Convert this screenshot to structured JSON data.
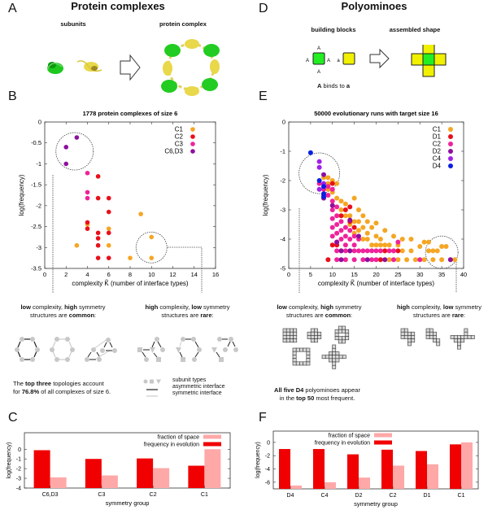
{
  "panels": {
    "A": {
      "letter": "A",
      "title": "Protein complexes",
      "left_label": "subunits",
      "right_label": "protein complex"
    },
    "D": {
      "letter": "D",
      "title": "Polyominoes",
      "left_label": "building blocks",
      "right_label": "assembled shape",
      "block_label_A": "A",
      "block_label_a": "a",
      "binding_note_bold1": "A",
      "binding_note_mid": " binds to ",
      "binding_note_bold2": "a"
    },
    "B": {
      "letter": "B"
    },
    "E": {
      "letter": "E"
    },
    "C": {
      "letter": "C"
    },
    "F": {
      "letter": "F"
    }
  },
  "captions_B": {
    "left_line1_bold1": "low",
    "left_line1_mid": " complexity, ",
    "left_line1_bold2": "high",
    "left_line1_end": " symmetry",
    "left_line2_start": "structures are ",
    "left_line2_bold": "common",
    "left_line2_end": ":",
    "right_line1_bold1": "high",
    "right_line1_mid": " complexity, ",
    "right_line1_bold2": "low",
    "right_line1_end": " symmetry",
    "right_line2_start": "structures are ",
    "right_line2_bold": "rare",
    "right_line2_end": ":",
    "note_line1_start": "The ",
    "note_line1_bold": "top three",
    "note_line1_end": " topologies account",
    "note_line2_start": "for ",
    "note_line2_bold": "76.8%",
    "note_line2_end": " of all complexes of size 6.",
    "legend_subunit": "subunit types",
    "legend_asym": "asymmetric interface",
    "legend_sym": "symmetric interface"
  },
  "captions_E": {
    "left_line1_bold1": "low",
    "left_line1_mid": " complexity, ",
    "left_line1_bold2": "high",
    "left_line1_end": " symmetry",
    "left_line2_start": "structures are ",
    "left_line2_bold": "common",
    "left_line2_end": ":",
    "right_line1_bold1": "high",
    "right_line1_mid": " complexity, ",
    "right_line1_bold2": "low",
    "right_line1_end": " symmetry",
    "right_line2_start": "structures are ",
    "right_line2_bold": "rare",
    "right_line2_end": ":",
    "note_line1_bold": "All five D4",
    "note_line1_end": " polyominoes appear",
    "note_line2_start": "in the ",
    "note_line2_bold": "top 50",
    "note_line2_end": " most frequent."
  },
  "chart_data": [
    {
      "id": "B",
      "type": "scatter",
      "title": "1778 protein complexes of size 6",
      "xlabel": "complexity K̃ (number of interface types)",
      "ylabel": "log(frequency)",
      "xlim": [
        0,
        16
      ],
      "ylim": [
        -3.5,
        0
      ],
      "xticks": [
        0,
        2,
        4,
        6,
        8,
        10,
        12,
        14,
        16
      ],
      "yticks": [
        0,
        -0.5,
        -1,
        -1.5,
        -2,
        -2.5,
        -3,
        -3.5
      ],
      "legend_position": "top-right",
      "series": [
        {
          "name": "C1",
          "color": "#f5a623",
          "points": [
            [
              3,
              -2.95
            ],
            [
              4,
              -2.45
            ],
            [
              6,
              -2.55
            ],
            [
              6,
              -2.95
            ],
            [
              8,
              -3.25
            ],
            [
              9,
              -2.2
            ],
            [
              10,
              -2.75
            ],
            [
              10,
              -3.25
            ]
          ]
        },
        {
          "name": "C2",
          "color": "#e8101c",
          "points": [
            [
              4,
              -2.4
            ],
            [
              4,
              -2.55
            ],
            [
              5,
              -1.3
            ],
            [
              5,
              -1.82
            ],
            [
              5,
              -2.65
            ],
            [
              5,
              -2.78
            ],
            [
              5,
              -2.95
            ],
            [
              5,
              -3.25
            ],
            [
              6,
              -1.82
            ],
            [
              6,
              -2.15
            ],
            [
              6,
              -2.65
            ],
            [
              6,
              -3.25
            ]
          ]
        },
        {
          "name": "C3",
          "color": "#f0229a",
          "points": [
            [
              4,
              -1.22
            ],
            [
              4,
              -1.68
            ],
            [
              4,
              -1.82
            ]
          ]
        },
        {
          "name": "C6,D3",
          "color": "#8e0f9e",
          "points": [
            [
              2,
              -0.6
            ],
            [
              2,
              -1.0
            ],
            [
              3,
              -0.37
            ]
          ]
        }
      ]
    },
    {
      "id": "E",
      "type": "scatter",
      "title": "50000 evolutionary runs with target size 16",
      "xlabel": "complexity K̃ (number of interface types)",
      "ylabel": "log(frequency)",
      "xlim": [
        0,
        40
      ],
      "ylim": [
        -5,
        0
      ],
      "xticks": [
        0,
        5,
        10,
        15,
        20,
        25,
        30,
        35,
        40
      ],
      "yticks": [
        0,
        -1,
        -2,
        -3,
        -4,
        -5
      ],
      "legend_position": "top-right",
      "series": [
        {
          "name": "C1",
          "color": "#f5a623",
          "points": [
            [
              8,
              -1.9
            ],
            [
              9,
              -1.9
            ],
            [
              9,
              -2.1
            ],
            [
              9,
              -2.3
            ],
            [
              10,
              -2.0
            ],
            [
              10,
              -2.4
            ],
            [
              11,
              -2.1
            ],
            [
              11,
              -2.6
            ],
            [
              12,
              -2.7
            ],
            [
              13,
              -2.8
            ],
            [
              15,
              -2.6
            ],
            [
              16,
              -3.0
            ],
            [
              17,
              -3.2
            ],
            [
              18,
              -3.4
            ],
            [
              20,
              -3.45
            ],
            [
              22,
              -3.7
            ],
            [
              24,
              -3.9
            ],
            [
              26,
              -4.0
            ],
            [
              28,
              -4.0
            ],
            [
              30,
              -4.25
            ],
            [
              31,
              -4.1
            ],
            [
              32,
              -4.1
            ],
            [
              34,
              -4.4
            ],
            [
              35,
              -4.25
            ],
            [
              36,
              -4.25
            ],
            [
              38,
              -4.7
            ],
            [
              37,
              -4.7
            ],
            [
              35,
              -4.7
            ],
            [
              33,
              -4.7
            ],
            [
              31,
              -4.7
            ],
            [
              29,
              -4.7
            ],
            [
              27,
              -4.7
            ],
            [
              25,
              -4.7
            ],
            [
              23,
              -4.7
            ],
            [
              28,
              -4.4
            ],
            [
              26,
              -4.4
            ],
            [
              24,
              -4.4
            ],
            [
              22,
              -4.4
            ],
            [
              21,
              -4.2
            ],
            [
              19,
              -4.2
            ],
            [
              17,
              -4.0
            ],
            [
              15,
              -3.8
            ],
            [
              14,
              -3.5
            ],
            [
              13,
              -3.2
            ],
            [
              16,
              -3.4
            ],
            [
              18,
              -3.8
            ],
            [
              20,
              -3.9
            ],
            [
              19,
              -3.6
            ],
            [
              21,
              -4.0
            ],
            [
              23,
              -4.2
            ],
            [
              25,
              -4.2
            ],
            [
              12,
              -3.0
            ],
            [
              14,
              -3.2
            ],
            [
              15,
              -3.4
            ],
            [
              17,
              -3.6
            ],
            [
              16,
              -3.7
            ],
            [
              18,
              -4.0
            ],
            [
              20,
              -4.2
            ],
            [
              22,
              -4.2
            ],
            [
              32,
              -4.4
            ],
            [
              33,
              -4.4
            ]
          ]
        },
        {
          "name": "D1",
          "color": "#e8101c",
          "points": [
            [
              9,
              -4.7
            ],
            [
              10,
              -2.1
            ],
            [
              10,
              -4.2
            ],
            [
              11,
              -4.2
            ],
            [
              12,
              -3.2
            ],
            [
              13,
              -3.0
            ],
            [
              14,
              -2.9
            ],
            [
              14,
              -3.4
            ],
            [
              15,
              -3.6
            ],
            [
              21,
              -4.7
            ],
            [
              22,
              -4.4
            ],
            [
              25,
              -4.4
            ]
          ]
        },
        {
          "name": "C2",
          "color": "#f0229a",
          "points": [
            [
              7,
              -2.1
            ],
            [
              8,
              -2.3
            ],
            [
              8,
              -2.5
            ],
            [
              9,
              -2.2
            ],
            [
              9,
              -2.5
            ],
            [
              10,
              -2.3
            ],
            [
              10,
              -2.7
            ],
            [
              10,
              -3.0
            ],
            [
              10,
              -3.3
            ],
            [
              10,
              -3.6
            ],
            [
              10,
              -3.9
            ],
            [
              11,
              -2.9
            ],
            [
              11,
              -3.2
            ],
            [
              11,
              -3.5
            ],
            [
              11,
              -3.8
            ],
            [
              11,
              -4.1
            ],
            [
              11,
              -4.4
            ],
            [
              12,
              -3.4
            ],
            [
              12,
              -3.7
            ],
            [
              12,
              -4.0
            ],
            [
              12,
              -4.4
            ],
            [
              13,
              -3.6
            ],
            [
              13,
              -3.9
            ],
            [
              13,
              -4.2
            ],
            [
              13,
              -4.4
            ],
            [
              14,
              -3.7
            ],
            [
              14,
              -4.0
            ],
            [
              14,
              -4.4
            ],
            [
              15,
              -3.9
            ],
            [
              15,
              -4.2
            ],
            [
              15,
              -4.4
            ],
            [
              16,
              -4.0
            ],
            [
              16,
              -4.4
            ],
            [
              17,
              -4.4
            ],
            [
              18,
              -4.4
            ],
            [
              19,
              -4.4
            ],
            [
              20,
              -4.4
            ],
            [
              21,
              -4.4
            ],
            [
              23,
              -4.4
            ],
            [
              24,
              -4.4
            ],
            [
              25,
              -4.1
            ],
            [
              11,
              -4.7
            ],
            [
              13,
              -4.7
            ],
            [
              15,
              -4.7
            ],
            [
              17,
              -4.7
            ],
            [
              19,
              -4.7
            ],
            [
              20,
              -4.7
            ],
            [
              24,
              -4.7
            ],
            [
              30,
              -4.7
            ]
          ]
        },
        {
          "name": "D2",
          "color": "#8e0f9e",
          "points": [
            [
              8,
              -1.8
            ],
            [
              8,
              -2.6
            ],
            [
              10,
              -2.85
            ],
            [
              11,
              -4.1
            ],
            [
              12,
              -4.7
            ],
            [
              12,
              -4.4
            ],
            [
              14,
              -3.35
            ],
            [
              14,
              -4.4
            ],
            [
              16,
              -3.9
            ],
            [
              18,
              -4.7
            ],
            [
              22,
              -4.7
            ],
            [
              37,
              -4.7
            ]
          ]
        },
        {
          "name": "C4",
          "color": "#a120e8",
          "points": [
            [
              7,
              -1.35
            ],
            [
              7,
              -1.55
            ],
            [
              7,
              -2.3
            ],
            [
              8,
              -2.1
            ],
            [
              8,
              -2.2
            ]
          ]
        },
        {
          "name": "D4",
          "color": "#0a1fe0",
          "points": [
            [
              5,
              -1.05
            ],
            [
              7,
              -2.0
            ],
            [
              8,
              -2.45
            ],
            [
              8,
              -2.55
            ],
            [
              8,
              -2.2
            ]
          ]
        }
      ]
    },
    {
      "id": "C",
      "type": "bar",
      "xlabel": "symmetry group",
      "ylabel": "log(frequency)",
      "ylim": [
        -4,
        1.7
      ],
      "yticks": [
        0,
        -1,
        -2,
        -3,
        -4
      ],
      "categories": [
        "C6,D3",
        "C3",
        "C2",
        "C1"
      ],
      "legend_position": "top-right",
      "series": [
        {
          "name": "frequency in evolution",
          "color": "#f00000",
          "values": [
            -0.1,
            -1.0,
            -0.95,
            -1.7
          ]
        },
        {
          "name": "fraction of space",
          "color": "#ffa8a8",
          "values": [
            -2.9,
            -2.7,
            -1.95,
            0.0
          ]
        }
      ]
    },
    {
      "id": "F",
      "type": "bar",
      "xlabel": "symmetry group",
      "ylabel": "log(frequency)",
      "ylim": [
        -7,
        1.7
      ],
      "yticks": [
        0,
        -2,
        -4,
        -6
      ],
      "categories": [
        "D4",
        "C4",
        "D2",
        "C2",
        "D1",
        "C1"
      ],
      "legend_position": "top-center",
      "series": [
        {
          "name": "frequency in evolution",
          "color": "#f00000",
          "values": [
            -1.0,
            -1.0,
            -1.8,
            -1.1,
            -1.3,
            -0.3
          ]
        },
        {
          "name": "fraction of space",
          "color": "#ffa8a8",
          "values": [
            -6.5,
            -6.0,
            -5.3,
            -3.5,
            -3.3,
            0.0
          ]
        }
      ]
    }
  ]
}
